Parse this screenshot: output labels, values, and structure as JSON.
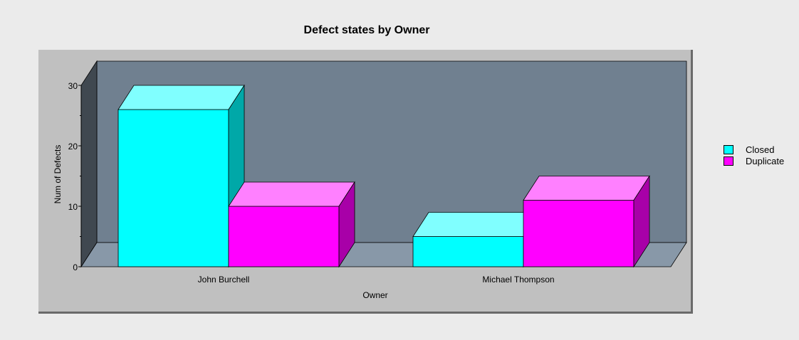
{
  "chart_data": {
    "type": "bar",
    "title": "Defect states by Owner",
    "xlabel": "Owner",
    "ylabel": "Num of Defects",
    "categories": [
      "John Burchell",
      "Michael Thompson"
    ],
    "series": [
      {
        "name": "Closed",
        "values": [
          26,
          5
        ],
        "color": "#00ffff",
        "top_color": "#80ffff",
        "side_color": "#00a8a8"
      },
      {
        "name": "Duplicate",
        "values": [
          10,
          11
        ],
        "color": "#ff00ff",
        "top_color": "#ff80ff",
        "side_color": "#a800a8"
      }
    ],
    "ylim": [
      0,
      30
    ],
    "yticks": [
      0,
      10,
      20,
      30
    ],
    "legend_position": "right",
    "style": "3d",
    "colors": {
      "background": "#ebebeb",
      "panel": "#c0c0c0",
      "back_wall": "#708090",
      "left_wall": "#404850",
      "floor": "#8898a8"
    }
  }
}
